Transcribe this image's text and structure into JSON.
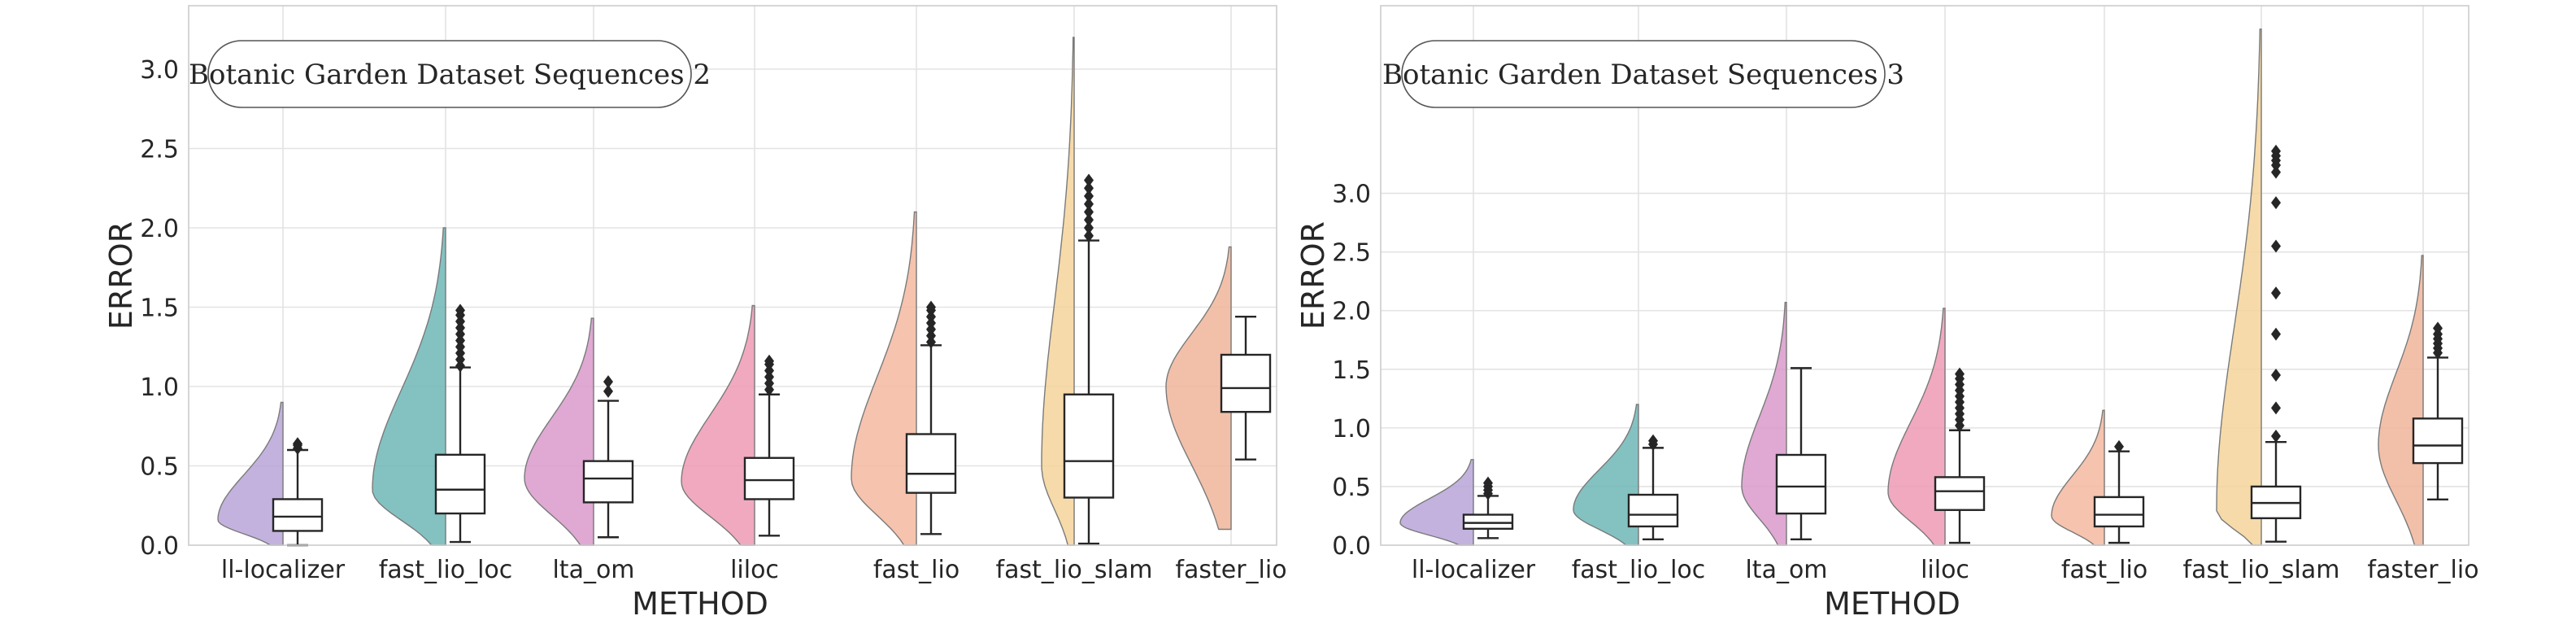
{
  "chart_data": [
    {
      "type": "raincloud",
      "title": "Botanic Garden Dataset Sequences 2",
      "xlabel": "METHOD",
      "ylabel": "ERROR",
      "ylim": [
        0,
        3.4
      ],
      "yticks": [
        0.0,
        0.5,
        1.0,
        1.5,
        2.0,
        2.5,
        3.0
      ],
      "ytick_labels": [
        "0.0",
        "0.5",
        "1.0",
        "1.5",
        "2.0",
        "2.5",
        "3.0"
      ],
      "grid": true,
      "categories": [
        "ll-localizer",
        "fast_lio_loc",
        "lta_om",
        "liloc",
        "fast_lio",
        "fast_lio_slam",
        "faster_lio"
      ],
      "colors": [
        "#b9a5d8",
        "#6fb7b7",
        "#d99acb",
        "#ef9ab5",
        "#f4b9a0",
        "#f5d49a",
        "#f0b59a"
      ],
      "series": [
        {
          "name": "ll-localizer",
          "box": {
            "q1": 0.09,
            "median": 0.18,
            "q3": 0.29,
            "lower_whisker": 0.0,
            "upper_whisker": 0.6
          },
          "density": {
            "min": 0.0,
            "max": 0.9,
            "peak": 0.16,
            "width": 0.8
          },
          "outliers": [
            0.61,
            0.63,
            0.64
          ]
        },
        {
          "name": "fast_lio_loc",
          "box": {
            "q1": 0.2,
            "median": 0.35,
            "q3": 0.57,
            "lower_whisker": 0.02,
            "upper_whisker": 1.12
          },
          "density": {
            "min": 0.0,
            "max": 2.0,
            "peak": 0.35,
            "width": 0.9
          },
          "outliers": [
            1.13,
            1.17,
            1.21,
            1.25,
            1.29,
            1.33,
            1.37,
            1.41,
            1.45,
            1.48
          ]
        },
        {
          "name": "lta_om",
          "box": {
            "q1": 0.27,
            "median": 0.42,
            "q3": 0.53,
            "lower_whisker": 0.05,
            "upper_whisker": 0.91
          },
          "density": {
            "min": 0.0,
            "max": 1.43,
            "peak": 0.42,
            "width": 0.85
          },
          "outliers": [
            0.97,
            1.03
          ]
        },
        {
          "name": "liloc",
          "box": {
            "q1": 0.29,
            "median": 0.41,
            "q3": 0.55,
            "lower_whisker": 0.06,
            "upper_whisker": 0.95
          },
          "density": {
            "min": 0.0,
            "max": 1.51,
            "peak": 0.4,
            "width": 0.9
          },
          "outliers": [
            0.98,
            1.02,
            1.06,
            1.1,
            1.14,
            1.16
          ]
        },
        {
          "name": "fast_lio",
          "box": {
            "q1": 0.33,
            "median": 0.45,
            "q3": 0.7,
            "lower_whisker": 0.07,
            "upper_whisker": 1.26
          },
          "density": {
            "min": 0.0,
            "max": 2.1,
            "peak": 0.42,
            "width": 0.8
          },
          "outliers": [
            1.28,
            1.32,
            1.36,
            1.4,
            1.44,
            1.48,
            1.5
          ]
        },
        {
          "name": "fast_lio_slam",
          "box": {
            "q1": 0.3,
            "median": 0.53,
            "q3": 0.95,
            "lower_whisker": 0.01,
            "upper_whisker": 1.92
          },
          "density": {
            "min": 0.0,
            "max": 3.2,
            "peak": 0.5,
            "width": 0.4
          },
          "outliers": [
            1.95,
            2.0,
            2.05,
            2.1,
            2.15,
            2.2,
            2.25,
            2.3
          ]
        },
        {
          "name": "faster_lio",
          "box": {
            "q1": 0.84,
            "median": 0.99,
            "q3": 1.2,
            "lower_whisker": 0.54,
            "upper_whisker": 1.44
          },
          "density": {
            "min": 0.1,
            "max": 1.88,
            "peak": 1.0,
            "width": 0.8
          },
          "outliers": []
        }
      ]
    },
    {
      "type": "raincloud",
      "title": "Botanic Garden Dataset Sequences 3",
      "xlabel": "METHOD",
      "ylabel": "ERROR",
      "ylim": [
        0,
        4.6
      ],
      "yticks": [
        0.0,
        0.5,
        1.0,
        1.5,
        2.0,
        2.5,
        3.0
      ],
      "ytick_labels": [
        "0.0",
        "0.5",
        "1.0",
        "1.5",
        "2.0",
        "2.5",
        "3.0"
      ],
      "grid": true,
      "categories": [
        "ll-localizer",
        "fast_lio_loc",
        "lta_om",
        "liloc",
        "fast_lio",
        "fast_lio_slam",
        "faster_lio"
      ],
      "colors": [
        "#b9a5d8",
        "#6fb7b7",
        "#d99acb",
        "#ef9ab5",
        "#f4b9a0",
        "#f5d49a",
        "#f0b59a"
      ],
      "series": [
        {
          "name": "ll-localizer",
          "box": {
            "q1": 0.14,
            "median": 0.19,
            "q3": 0.26,
            "lower_whisker": 0.06,
            "upper_whisker": 0.42
          },
          "density": {
            "min": 0.0,
            "max": 0.73,
            "peak": 0.19,
            "width": 0.9
          },
          "outliers": [
            0.44,
            0.47,
            0.5,
            0.53
          ]
        },
        {
          "name": "fast_lio_loc",
          "box": {
            "q1": 0.16,
            "median": 0.26,
            "q3": 0.43,
            "lower_whisker": 0.05,
            "upper_whisker": 0.83
          },
          "density": {
            "min": 0.0,
            "max": 1.2,
            "peak": 0.3,
            "width": 0.8
          },
          "outliers": [
            0.86,
            0.89
          ]
        },
        {
          "name": "lta_om",
          "box": {
            "q1": 0.27,
            "median": 0.5,
            "q3": 0.77,
            "lower_whisker": 0.05,
            "upper_whisker": 1.51
          },
          "density": {
            "min": 0.0,
            "max": 2.07,
            "peak": 0.5,
            "width": 0.55
          },
          "outliers": []
        },
        {
          "name": "liloc",
          "box": {
            "q1": 0.3,
            "median": 0.46,
            "q3": 0.58,
            "lower_whisker": 0.02,
            "upper_whisker": 0.98
          },
          "density": {
            "min": 0.0,
            "max": 2.02,
            "peak": 0.45,
            "width": 0.7
          },
          "outliers": [
            1.02,
            1.07,
            1.12,
            1.17,
            1.22,
            1.27,
            1.32,
            1.37,
            1.42,
            1.46
          ]
        },
        {
          "name": "fast_lio",
          "box": {
            "q1": 0.16,
            "median": 0.26,
            "q3": 0.41,
            "lower_whisker": 0.02,
            "upper_whisker": 0.8
          },
          "density": {
            "min": 0.0,
            "max": 1.15,
            "peak": 0.25,
            "width": 0.65
          },
          "outliers": [
            0.84
          ]
        },
        {
          "name": "fast_lio_slam",
          "box": {
            "q1": 0.23,
            "median": 0.36,
            "q3": 0.5,
            "lower_whisker": 0.03,
            "upper_whisker": 0.88
          },
          "density": {
            "min": 0.0,
            "max": 4.4,
            "peak": 0.3,
            "width": 0.55
          },
          "outliers": [
            0.93,
            1.17,
            1.45,
            1.8,
            2.15,
            2.55,
            2.92,
            3.18,
            3.24,
            3.28,
            3.32,
            3.36
          ]
        },
        {
          "name": "faster_lio",
          "box": {
            "q1": 0.7,
            "median": 0.85,
            "q3": 1.08,
            "lower_whisker": 0.39,
            "upper_whisker": 1.6
          },
          "density": {
            "min": 0.0,
            "max": 2.47,
            "peak": 0.85,
            "width": 0.55
          },
          "outliers": [
            1.64,
            1.68,
            1.72,
            1.76,
            1.8,
            1.85
          ]
        }
      ]
    }
  ]
}
